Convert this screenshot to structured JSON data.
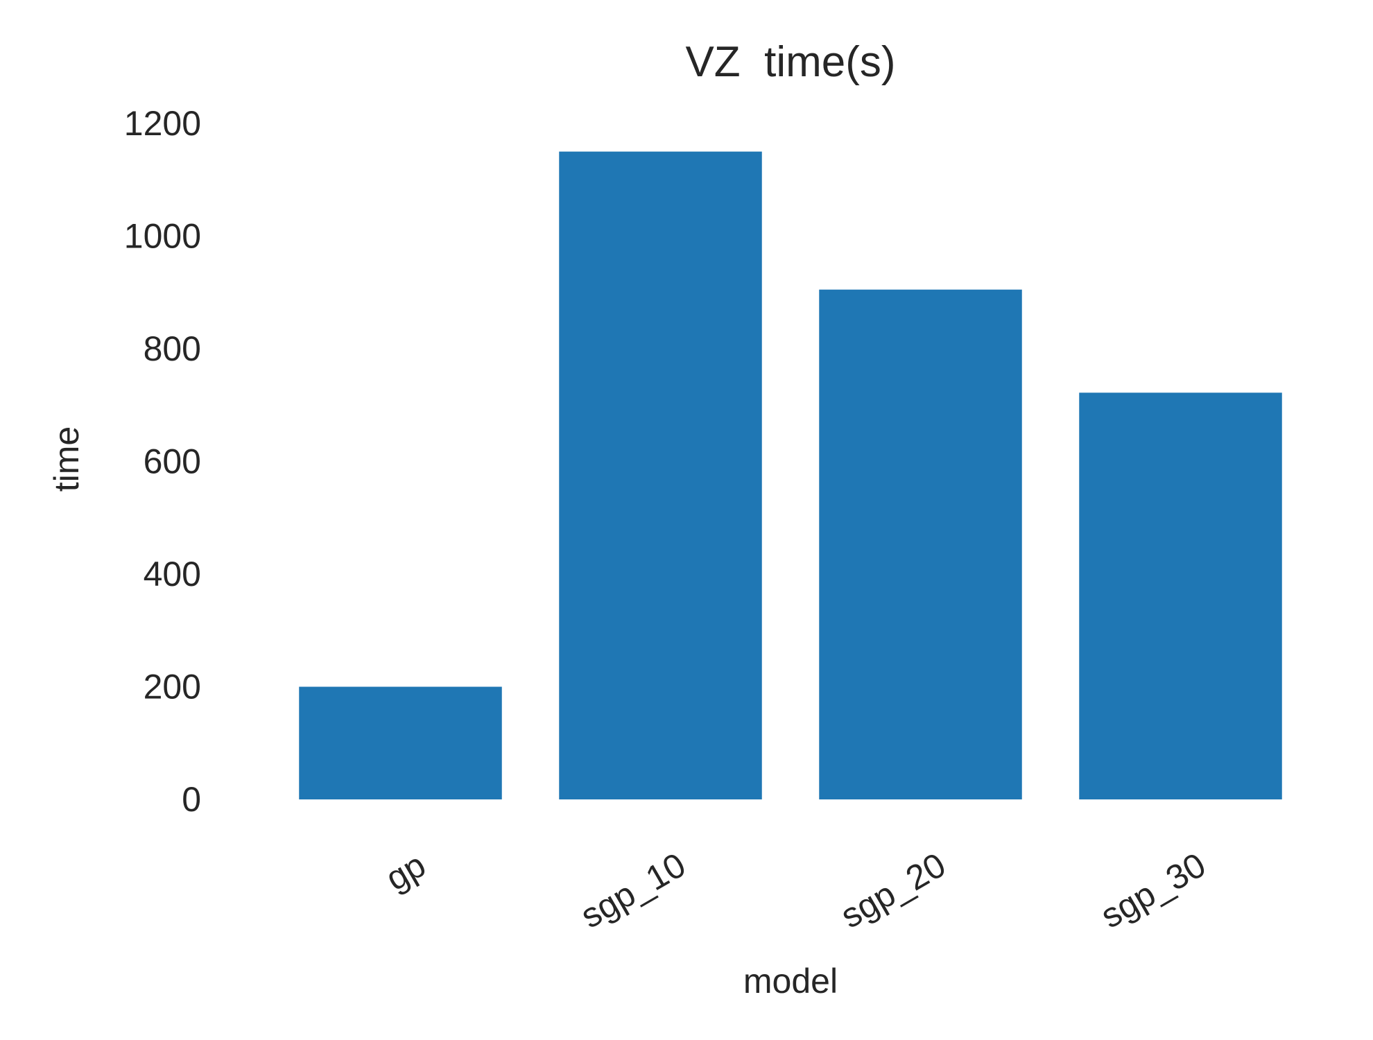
{
  "chart_data": {
    "type": "bar",
    "title": "VZ  time(s)",
    "xlabel": "model",
    "ylabel": "time",
    "categories": [
      "gp",
      "sgp_10",
      "sgp_20",
      "sgp_30"
    ],
    "values": [
      200,
      1150,
      905,
      722
    ],
    "ylim": [
      0,
      1200
    ],
    "yticks": [
      "0",
      "200",
      "400",
      "600",
      "800",
      "1000",
      "1200"
    ],
    "grid": false,
    "bar_color": "#1f77b4"
  }
}
